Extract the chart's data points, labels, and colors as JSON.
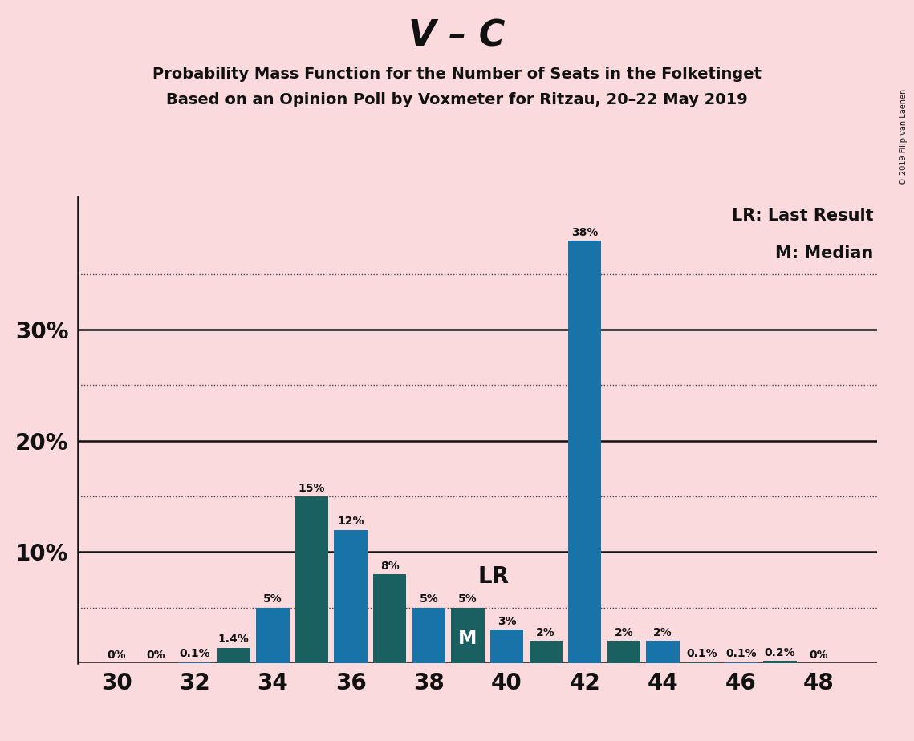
{
  "title_main": "V – C",
  "subtitle1": "Probability Mass Function for the Number of Seats in the Folketinget",
  "subtitle2": "Based on an Opinion Poll by Voxmeter for Ritzau, 20–22 May 2019",
  "copyright": "© 2019 Filip van Laenen",
  "legend_lr": "LR: Last Result",
  "legend_m": "M: Median",
  "background_color": "#fadadd",
  "bar_color_blue": "#1874a8",
  "bar_color_teal": "#1a6060",
  "seats": [
    30,
    31,
    32,
    33,
    34,
    35,
    36,
    37,
    38,
    39,
    40,
    41,
    42,
    43,
    44,
    45,
    46,
    47,
    48
  ],
  "values": [
    0.0,
    0.0,
    0.1,
    1.4,
    5.0,
    15.0,
    12.0,
    8.0,
    5.0,
    5.0,
    3.0,
    2.0,
    38.0,
    2.0,
    2.0,
    0.1,
    0.1,
    0.2,
    0.0
  ],
  "colors": [
    "blue",
    "blue",
    "blue",
    "teal",
    "blue",
    "teal",
    "blue",
    "teal",
    "blue",
    "teal",
    "blue",
    "teal",
    "blue",
    "teal",
    "blue",
    "teal",
    "blue",
    "teal",
    "blue"
  ],
  "labels": [
    "0%",
    "0%",
    "0.1%",
    "1.4%",
    "5%",
    "15%",
    "12%",
    "8%",
    "5%",
    "5%",
    "3%",
    "2%",
    "38%",
    "2%",
    "2%",
    "0.1%",
    "0.1%",
    "0.2%",
    "0%"
  ],
  "lr_seat": 39,
  "median_seat": 39,
  "ylim": [
    0,
    42
  ],
  "xlim": [
    29.0,
    49.5
  ],
  "xtick_positions": [
    30,
    32,
    34,
    36,
    38,
    40,
    42,
    44,
    46,
    48
  ],
  "ytick_solid": [
    10,
    20,
    30
  ],
  "ytick_dotted": [
    5,
    15,
    25,
    35
  ],
  "bar_width": 0.85
}
